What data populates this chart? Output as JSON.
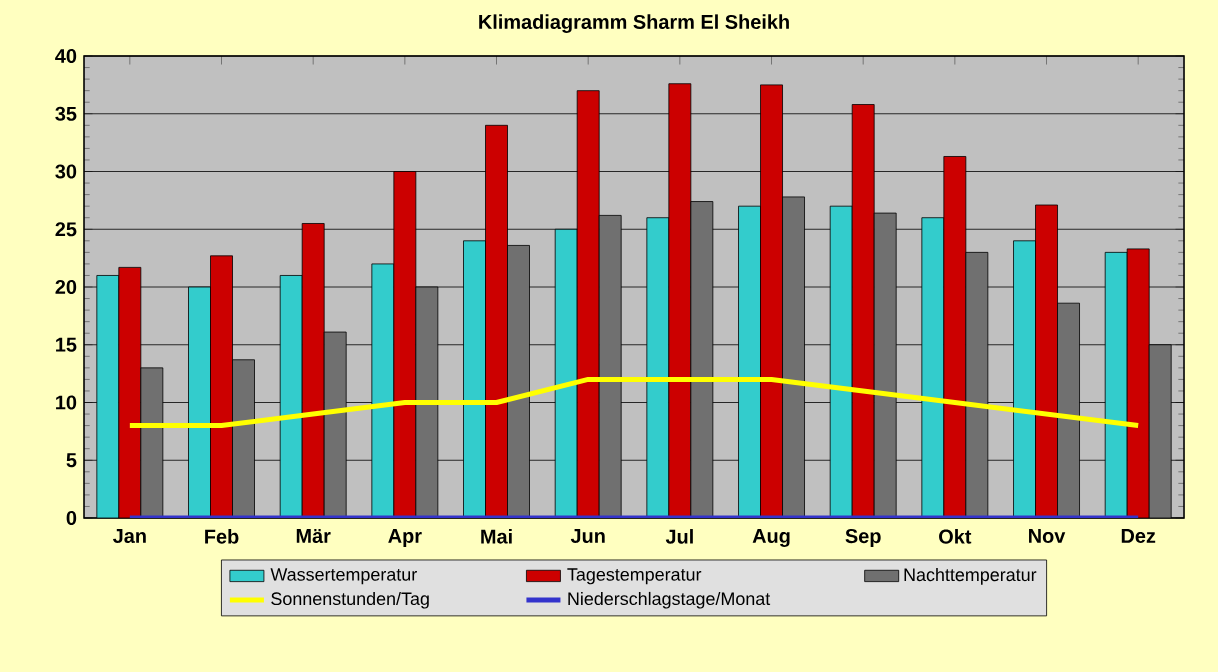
{
  "chart_data": {
    "type": "bar",
    "title": "Klimadiagramm Sharm El Sheikh",
    "categories": [
      "Jan",
      "Feb",
      "Mär",
      "Apr",
      "Mai",
      "Jun",
      "Jul",
      "Aug",
      "Sep",
      "Okt",
      "Nov",
      "Dez"
    ],
    "series": [
      {
        "name": "Wassertemperatur",
        "color": "#33cccc",
        "values": [
          21,
          20,
          21,
          22,
          24,
          25,
          26,
          27,
          27,
          26,
          24,
          23
        ]
      },
      {
        "name": "Tagestemperatur",
        "color": "#cc0000",
        "values": [
          21.7,
          22.7,
          25.5,
          30,
          34,
          37,
          37.6,
          37.5,
          35.8,
          31.3,
          27.1,
          23.3
        ]
      },
      {
        "name": "Nachttemperatur",
        "color": "#707070",
        "values": [
          13,
          13.7,
          16.1,
          20,
          23.6,
          26.2,
          27.4,
          27.8,
          26.4,
          23,
          18.6,
          15
        ]
      },
      {
        "name": "Sonnenstunden/Tag",
        "type": "line",
        "color": "#ffff00",
        "values": [
          8,
          8,
          9,
          10,
          10,
          12,
          12,
          12,
          11,
          10,
          9,
          8
        ]
      },
      {
        "name": "Niederschlagstage/Monat",
        "type": "line",
        "color": "#3333cc",
        "values": [
          0,
          0,
          0,
          0,
          0,
          0,
          0,
          0,
          0,
          0,
          0,
          0
        ]
      }
    ],
    "ylim": [
      0,
      40
    ],
    "yticks": [
      0,
      5,
      10,
      15,
      20,
      25,
      30,
      35,
      40
    ],
    "grid": "y",
    "legend": "bottom",
    "marker": "none"
  }
}
